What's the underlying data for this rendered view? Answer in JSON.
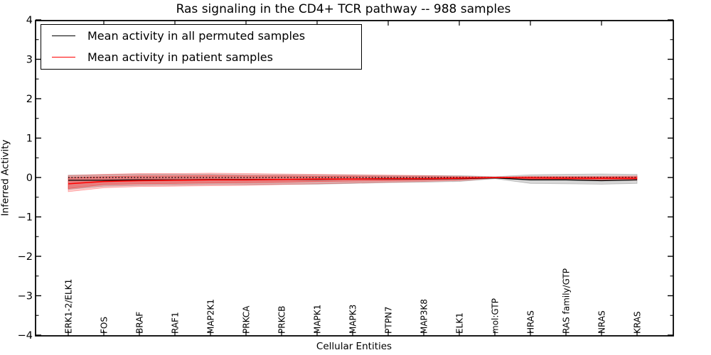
{
  "title": "Ras signaling in the CD4+ TCR pathway -- 988 samples",
  "legend": {
    "items": [
      {
        "label": "Mean activity in all permuted samples",
        "color": "#000000"
      },
      {
        "label": "Mean activity in patient samples",
        "color": "#ff0000"
      }
    ],
    "position": "upper left"
  },
  "chart_data": {
    "type": "line",
    "title": "Ras signaling in the CD4+ TCR pathway -- 988 samples",
    "xlabel": "Cellular Entities",
    "ylabel": "Inferred Activity",
    "ylim": [
      -4,
      4
    ],
    "yticks": [
      -4,
      -3,
      -2,
      -1,
      0,
      1,
      2,
      3,
      4
    ],
    "grid": false,
    "legend_position": "upper left",
    "categories": [
      "ERK1-2/ELK1",
      "FOS",
      "BRAF",
      "RAF1",
      "MAP2K1",
      "PRKCA",
      "PRKCB",
      "MAPK1",
      "MAPK3",
      "PTPN7",
      "MAP3K8",
      "ELK1",
      "mol:GTP",
      "HRAS",
      "RAS family/GTP",
      "NRAS",
      "KRAS"
    ],
    "zero_line": {
      "y": 0,
      "style": "dotted",
      "color": "#000000"
    },
    "series": [
      {
        "name": "Mean activity in all permuted samples",
        "color": "#000000",
        "values": [
          -0.07,
          -0.07,
          -0.06,
          -0.06,
          -0.05,
          -0.05,
          -0.05,
          -0.05,
          -0.04,
          -0.04,
          -0.04,
          -0.03,
          -0.01,
          -0.06,
          -0.06,
          -0.08,
          -0.06
        ]
      },
      {
        "name": "Mean activity in patient samples",
        "color": "#ff0000",
        "values": [
          -0.16,
          -0.1,
          -0.08,
          -0.07,
          -0.06,
          -0.06,
          -0.05,
          -0.04,
          -0.04,
          -0.03,
          -0.03,
          -0.02,
          0.0,
          -0.01,
          -0.02,
          -0.02,
          -0.02
        ]
      }
    ],
    "bands": [
      {
        "name": "permuted-samples-range",
        "color": "#777777",
        "opacity": 0.3,
        "upper": [
          0.06,
          0.07,
          0.08,
          0.08,
          0.08,
          0.07,
          0.07,
          0.06,
          0.06,
          0.05,
          0.05,
          0.05,
          0.02,
          0.07,
          0.08,
          0.09,
          0.08
        ],
        "lower": [
          -0.3,
          -0.22,
          -0.2,
          -0.19,
          -0.18,
          -0.18,
          -0.17,
          -0.17,
          -0.15,
          -0.13,
          -0.12,
          -0.1,
          -0.03,
          -0.15,
          -0.16,
          -0.17,
          -0.15
        ]
      },
      {
        "name": "patient-samples-range-outer",
        "color": "#ff0000",
        "opacity": 0.2,
        "upper": [
          0.05,
          0.08,
          0.1,
          0.1,
          0.11,
          0.1,
          0.09,
          0.08,
          0.07,
          0.06,
          0.05,
          0.03,
          0.01,
          0.03,
          0.03,
          0.03,
          0.04
        ],
        "lower": [
          -0.36,
          -0.26,
          -0.23,
          -0.22,
          -0.21,
          -0.2,
          -0.18,
          -0.16,
          -0.14,
          -0.12,
          -0.1,
          -0.08,
          -0.02,
          -0.06,
          -0.06,
          -0.07,
          -0.07
        ]
      },
      {
        "name": "patient-samples-range-inner",
        "color": "#ff0000",
        "opacity": 0.26,
        "upper": [
          0.0,
          0.02,
          0.04,
          0.04,
          0.05,
          0.04,
          0.04,
          0.03,
          0.03,
          0.02,
          0.02,
          0.01,
          0.005,
          0.01,
          0.01,
          0.01,
          0.02
        ],
        "lower": [
          -0.28,
          -0.18,
          -0.16,
          -0.15,
          -0.14,
          -0.13,
          -0.12,
          -0.1,
          -0.09,
          -0.08,
          -0.07,
          -0.05,
          -0.01,
          -0.04,
          -0.04,
          -0.05,
          -0.05
        ]
      }
    ]
  }
}
